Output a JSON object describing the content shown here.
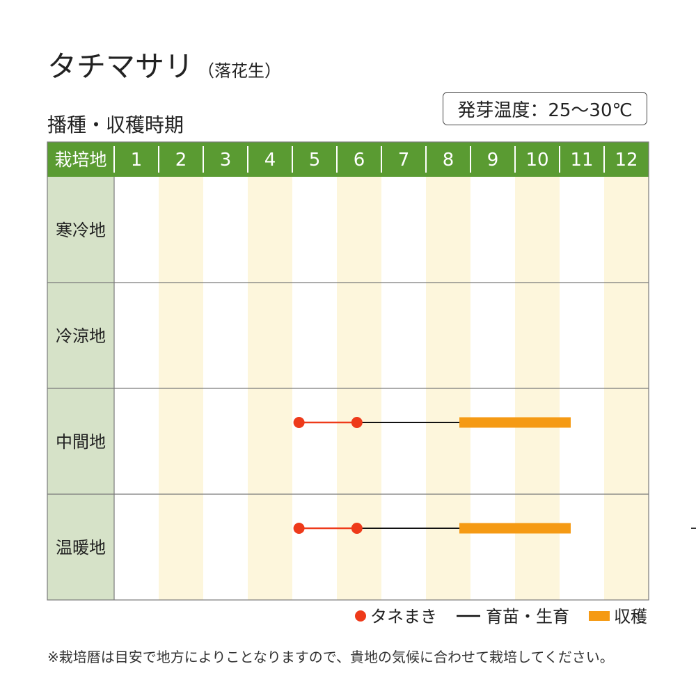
{
  "header": {
    "title": "タチマサリ",
    "subtitle": "（落花生）",
    "period_title": "播種・収穫時期",
    "germination_temp": "発芽温度：25～30℃"
  },
  "colors": {
    "header_bg": "#5a9b32",
    "header_text": "#ffffff",
    "row_label_bg": "#d6e2c8",
    "stripe": "#fdf6dc",
    "sowing": "#ee3a1a",
    "growing": "#111111",
    "harvest": "#f59a14",
    "grid": "#7a7a7a"
  },
  "chart_data": {
    "type": "table",
    "corner_label": "栽培地",
    "months": [
      "1",
      "2",
      "3",
      "4",
      "5",
      "6",
      "7",
      "8",
      "9",
      "10",
      "11",
      "12"
    ],
    "regions": [
      {
        "name": "寒冷地",
        "sowing": null,
        "growing": null,
        "harvest": null
      },
      {
        "name": "冷涼地",
        "sowing": null,
        "growing": null,
        "harvest": null
      },
      {
        "name": "中間地",
        "sowing": [
          5.15,
          6.45
        ],
        "growing": [
          6.45,
          8.75
        ],
        "harvest": [
          8.75,
          11.25
        ]
      },
      {
        "name": "温暖地",
        "sowing": [
          5.15,
          6.45
        ],
        "growing": [
          6.45,
          8.75
        ],
        "harvest": [
          8.75,
          11.25
        ]
      }
    ],
    "legend": [
      {
        "key": "sowing",
        "label": "タネまき",
        "symbol": "dot"
      },
      {
        "key": "growing",
        "label": "育苗・生育",
        "symbol": "line"
      },
      {
        "key": "harvest",
        "label": "収穫",
        "symbol": "bar"
      }
    ]
  },
  "footnote": "※栽培暦は目安で地方によりことなりますので、貴地の気候に合わせて栽培してください。"
}
